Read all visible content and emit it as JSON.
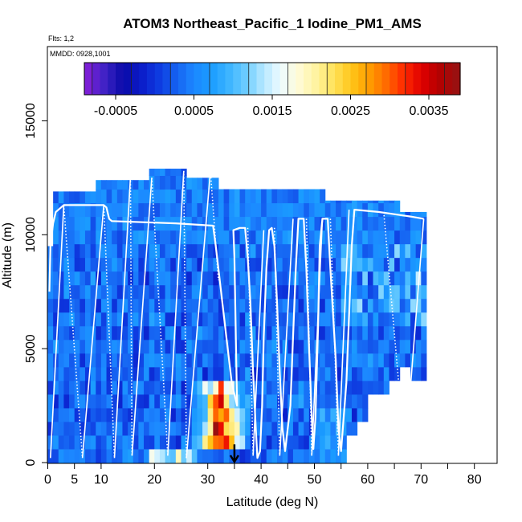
{
  "chart_data": {
    "type": "heatmap",
    "title": "ATOM3 Northeast_Pacific_1 Iodine_PM1_AMS",
    "flights_label": "Flts: 1,2",
    "dates_label": "MMDD: 0928,1001",
    "xlabel": "Latitude (deg N)",
    "ylabel": "Altitude (m)",
    "xlim": [
      -0.5,
      84
    ],
    "ylim": [
      0,
      18000
    ],
    "x_ticks": [
      0,
      5,
      10,
      20,
      30,
      40,
      50,
      60,
      70,
      80
    ],
    "x_tick_labels": [
      "0",
      "5",
      "10",
      "20",
      "30",
      "40",
      "50",
      "60",
      "70",
      "80"
    ],
    "x_minor_ticks": [
      35,
      45,
      55,
      65,
      75,
      85
    ],
    "y_ticks": [
      0,
      5000,
      10000,
      15000
    ],
    "y_tick_labels": [
      "0",
      "5000",
      "10000",
      "15000"
    ],
    "colorbar": {
      "min": -0.0009,
      "max": 0.0039,
      "tick_values": [
        -0.0005,
        0.0005,
        0.0015,
        0.0025,
        0.0035
      ],
      "tick_labels": [
        "-0.0005",
        "0.0005",
        "0.0015",
        "0.0025",
        "0.0035"
      ],
      "colors": [
        "#7b1fd6",
        "#3b22c4",
        "#0a0aa8",
        "#0b1bc8",
        "#0e3ae0",
        "#1560f0",
        "#1c86ff",
        "#1a9cff",
        "#3cb4ff",
        "#6cccff",
        "#b6e8ff",
        "#eefbff",
        "#fffbd6",
        "#fff3a0",
        "#ffe35a",
        "#ffc61a",
        "#ff9f00",
        "#ff6a00",
        "#ff2a00",
        "#e00000",
        "#b40000",
        "#9a1010"
      ]
    },
    "flight_track": [
      [
        0.3,
        7500
      ],
      [
        0.5,
        9500
      ],
      [
        1.0,
        10500
      ],
      [
        1.5,
        11000
      ],
      [
        3.0,
        11300
      ],
      [
        10.5,
        11300
      ],
      [
        11.0,
        11200
      ],
      [
        11.5,
        10700
      ],
      [
        12.0,
        10600
      ],
      [
        24.0,
        10500
      ],
      [
        31.0,
        10400
      ],
      [
        31.5,
        9500
      ],
      [
        32.5,
        7500
      ],
      [
        33.5,
        5500
      ],
      [
        34.5,
        3500
      ],
      [
        35.5,
        2500
      ],
      [
        35.0,
        9000
      ],
      [
        34.8,
        10200
      ],
      [
        36.0,
        10300
      ],
      [
        37.0,
        10300
      ],
      [
        37.5,
        9000
      ],
      [
        38.0,
        7000
      ],
      [
        38.5,
        4000
      ],
      [
        39.0,
        1500
      ],
      [
        39.3,
        200
      ],
      [
        39.8,
        500
      ],
      [
        40.2,
        2500
      ],
      [
        40.5,
        5500
      ],
      [
        41.0,
        8500
      ],
      [
        41.5,
        10200
      ],
      [
        42.0,
        10300
      ],
      [
        42.5,
        9500
      ],
      [
        43.0,
        7000
      ],
      [
        43.5,
        4000
      ],
      [
        44.0,
        1500
      ],
      [
        44.5,
        500
      ],
      [
        45.5,
        2500
      ],
      [
        46.0,
        5500
      ],
      [
        46.5,
        8500
      ],
      [
        47.0,
        10700
      ],
      [
        48.0,
        10700
      ],
      [
        48.5,
        8500
      ],
      [
        49.0,
        5000
      ],
      [
        49.5,
        2000
      ],
      [
        49.8,
        600
      ],
      [
        50.2,
        2000
      ],
      [
        50.7,
        6000
      ],
      [
        51.0,
        9500
      ],
      [
        51.5,
        10700
      ],
      [
        52.5,
        10700
      ],
      [
        53.0,
        8500
      ],
      [
        54.0,
        4500
      ],
      [
        54.5,
        1500
      ],
      [
        55.0,
        500
      ],
      [
        56.0,
        3500
      ],
      [
        56.5,
        6500
      ],
      [
        57.0,
        9500
      ],
      [
        57.5,
        11100
      ],
      [
        62.0,
        11000
      ],
      [
        68.0,
        10800
      ],
      [
        70.5,
        10700
      ]
    ],
    "ascents": [
      [
        0.5,
        200,
        3.0,
        11300
      ],
      [
        6.5,
        200,
        10.5,
        11300
      ],
      [
        12.5,
        200,
        15.5,
        12500
      ],
      [
        15.8,
        300,
        19.5,
        12500
      ],
      [
        22.5,
        300,
        25.5,
        12800
      ],
      [
        26.0,
        200,
        30.5,
        12800
      ],
      [
        38.5,
        300,
        40.5,
        10200
      ],
      [
        43.5,
        300,
        46.0,
        10700
      ],
      [
        49.5,
        300,
        51.5,
        10700
      ],
      [
        54.5,
        300,
        56.5,
        11100
      ],
      [
        67.0,
        300,
        70.5,
        10700
      ]
    ],
    "descents": [
      [
        3.0,
        11300,
        6.5,
        200
      ],
      [
        10.5,
        11300,
        12.5,
        200
      ],
      [
        15.5,
        12500,
        15.8,
        300
      ],
      [
        19.5,
        12500,
        22.5,
        300
      ],
      [
        25.5,
        12800,
        26.0,
        200
      ],
      [
        30.5,
        12800,
        32.0,
        8000
      ],
      [
        37.5,
        10300,
        38.5,
        300
      ],
      [
        42.5,
        10300,
        43.5,
        300
      ],
      [
        48.5,
        10700,
        49.5,
        300
      ],
      [
        53.0,
        10700,
        54.5,
        300
      ],
      [
        63.0,
        11000,
        67.0,
        300
      ]
    ],
    "arrow_marker": {
      "latitude": 35,
      "altitude_from": 800,
      "altitude_to": 0
    }
  }
}
